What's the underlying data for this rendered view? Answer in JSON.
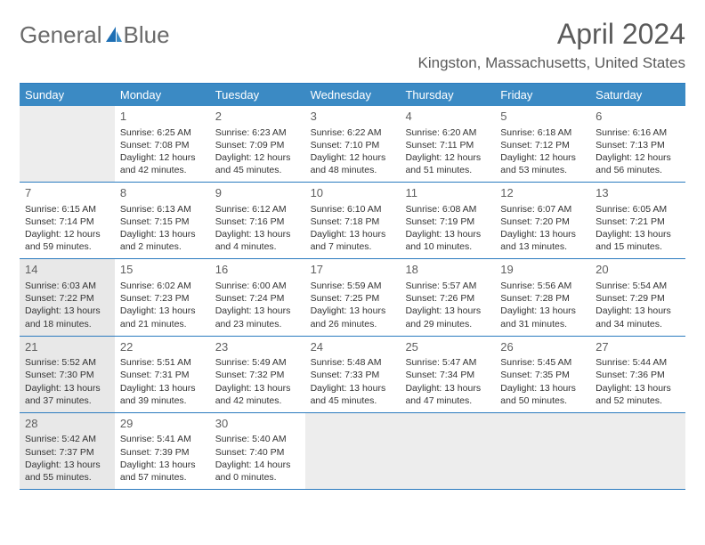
{
  "brand": {
    "part1": "General",
    "part2": "Blue"
  },
  "title": "April 2024",
  "location": "Kingston, Massachusetts, United States",
  "colors": {
    "header_bg": "#3b8ac4",
    "border": "#2b7bbf",
    "empty_bg": "#ededed",
    "shade_bg": "#e8e8e8",
    "text": "#333333",
    "muted": "#5a5a5a"
  },
  "days_of_week": [
    "Sunday",
    "Monday",
    "Tuesday",
    "Wednesday",
    "Thursday",
    "Friday",
    "Saturday"
  ],
  "weeks": [
    [
      {
        "empty": true
      },
      {
        "n": "1",
        "sr": "Sunrise: 6:25 AM",
        "ss": "Sunset: 7:08 PM",
        "dl1": "Daylight: 12 hours",
        "dl2": "and 42 minutes."
      },
      {
        "n": "2",
        "sr": "Sunrise: 6:23 AM",
        "ss": "Sunset: 7:09 PM",
        "dl1": "Daylight: 12 hours",
        "dl2": "and 45 minutes."
      },
      {
        "n": "3",
        "sr": "Sunrise: 6:22 AM",
        "ss": "Sunset: 7:10 PM",
        "dl1": "Daylight: 12 hours",
        "dl2": "and 48 minutes."
      },
      {
        "n": "4",
        "sr": "Sunrise: 6:20 AM",
        "ss": "Sunset: 7:11 PM",
        "dl1": "Daylight: 12 hours",
        "dl2": "and 51 minutes."
      },
      {
        "n": "5",
        "sr": "Sunrise: 6:18 AM",
        "ss": "Sunset: 7:12 PM",
        "dl1": "Daylight: 12 hours",
        "dl2": "and 53 minutes."
      },
      {
        "n": "6",
        "sr": "Sunrise: 6:16 AM",
        "ss": "Sunset: 7:13 PM",
        "dl1": "Daylight: 12 hours",
        "dl2": "and 56 minutes."
      }
    ],
    [
      {
        "n": "7",
        "sr": "Sunrise: 6:15 AM",
        "ss": "Sunset: 7:14 PM",
        "dl1": "Daylight: 12 hours",
        "dl2": "and 59 minutes."
      },
      {
        "n": "8",
        "sr": "Sunrise: 6:13 AM",
        "ss": "Sunset: 7:15 PM",
        "dl1": "Daylight: 13 hours",
        "dl2": "and 2 minutes."
      },
      {
        "n": "9",
        "sr": "Sunrise: 6:12 AM",
        "ss": "Sunset: 7:16 PM",
        "dl1": "Daylight: 13 hours",
        "dl2": "and 4 minutes."
      },
      {
        "n": "10",
        "sr": "Sunrise: 6:10 AM",
        "ss": "Sunset: 7:18 PM",
        "dl1": "Daylight: 13 hours",
        "dl2": "and 7 minutes."
      },
      {
        "n": "11",
        "sr": "Sunrise: 6:08 AM",
        "ss": "Sunset: 7:19 PM",
        "dl1": "Daylight: 13 hours",
        "dl2": "and 10 minutes."
      },
      {
        "n": "12",
        "sr": "Sunrise: 6:07 AM",
        "ss": "Sunset: 7:20 PM",
        "dl1": "Daylight: 13 hours",
        "dl2": "and 13 minutes."
      },
      {
        "n": "13",
        "sr": "Sunrise: 6:05 AM",
        "ss": "Sunset: 7:21 PM",
        "dl1": "Daylight: 13 hours",
        "dl2": "and 15 minutes."
      }
    ],
    [
      {
        "n": "14",
        "shade": true,
        "sr": "Sunrise: 6:03 AM",
        "ss": "Sunset: 7:22 PM",
        "dl1": "Daylight: 13 hours",
        "dl2": "and 18 minutes."
      },
      {
        "n": "15",
        "sr": "Sunrise: 6:02 AM",
        "ss": "Sunset: 7:23 PM",
        "dl1": "Daylight: 13 hours",
        "dl2": "and 21 minutes."
      },
      {
        "n": "16",
        "sr": "Sunrise: 6:00 AM",
        "ss": "Sunset: 7:24 PM",
        "dl1": "Daylight: 13 hours",
        "dl2": "and 23 minutes."
      },
      {
        "n": "17",
        "sr": "Sunrise: 5:59 AM",
        "ss": "Sunset: 7:25 PM",
        "dl1": "Daylight: 13 hours",
        "dl2": "and 26 minutes."
      },
      {
        "n": "18",
        "sr": "Sunrise: 5:57 AM",
        "ss": "Sunset: 7:26 PM",
        "dl1": "Daylight: 13 hours",
        "dl2": "and 29 minutes."
      },
      {
        "n": "19",
        "sr": "Sunrise: 5:56 AM",
        "ss": "Sunset: 7:28 PM",
        "dl1": "Daylight: 13 hours",
        "dl2": "and 31 minutes."
      },
      {
        "n": "20",
        "sr": "Sunrise: 5:54 AM",
        "ss": "Sunset: 7:29 PM",
        "dl1": "Daylight: 13 hours",
        "dl2": "and 34 minutes."
      }
    ],
    [
      {
        "n": "21",
        "shade": true,
        "sr": "Sunrise: 5:52 AM",
        "ss": "Sunset: 7:30 PM",
        "dl1": "Daylight: 13 hours",
        "dl2": "and 37 minutes."
      },
      {
        "n": "22",
        "sr": "Sunrise: 5:51 AM",
        "ss": "Sunset: 7:31 PM",
        "dl1": "Daylight: 13 hours",
        "dl2": "and 39 minutes."
      },
      {
        "n": "23",
        "sr": "Sunrise: 5:49 AM",
        "ss": "Sunset: 7:32 PM",
        "dl1": "Daylight: 13 hours",
        "dl2": "and 42 minutes."
      },
      {
        "n": "24",
        "sr": "Sunrise: 5:48 AM",
        "ss": "Sunset: 7:33 PM",
        "dl1": "Daylight: 13 hours",
        "dl2": "and 45 minutes."
      },
      {
        "n": "25",
        "sr": "Sunrise: 5:47 AM",
        "ss": "Sunset: 7:34 PM",
        "dl1": "Daylight: 13 hours",
        "dl2": "and 47 minutes."
      },
      {
        "n": "26",
        "sr": "Sunrise: 5:45 AM",
        "ss": "Sunset: 7:35 PM",
        "dl1": "Daylight: 13 hours",
        "dl2": "and 50 minutes."
      },
      {
        "n": "27",
        "sr": "Sunrise: 5:44 AM",
        "ss": "Sunset: 7:36 PM",
        "dl1": "Daylight: 13 hours",
        "dl2": "and 52 minutes."
      }
    ],
    [
      {
        "n": "28",
        "shade": true,
        "sr": "Sunrise: 5:42 AM",
        "ss": "Sunset: 7:37 PM",
        "dl1": "Daylight: 13 hours",
        "dl2": "and 55 minutes."
      },
      {
        "n": "29",
        "sr": "Sunrise: 5:41 AM",
        "ss": "Sunset: 7:39 PM",
        "dl1": "Daylight: 13 hours",
        "dl2": "and 57 minutes."
      },
      {
        "n": "30",
        "sr": "Sunrise: 5:40 AM",
        "ss": "Sunset: 7:40 PM",
        "dl1": "Daylight: 14 hours",
        "dl2": "and 0 minutes."
      },
      {
        "empty": true
      },
      {
        "empty": true
      },
      {
        "empty": true
      },
      {
        "empty": true
      }
    ]
  ]
}
